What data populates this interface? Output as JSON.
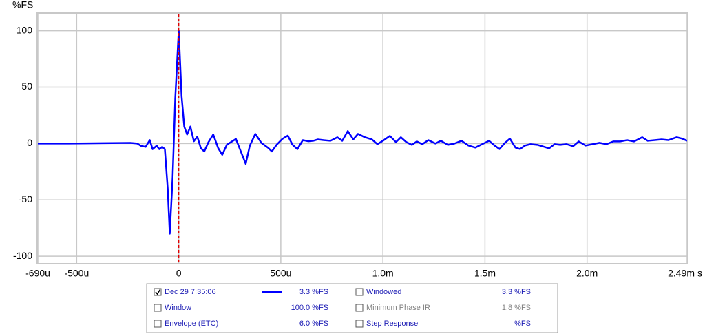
{
  "chart_data": {
    "type": "line",
    "y_label": "%FS",
    "x_unit": "s",
    "xlim": [
      -0.00069,
      0.00249
    ],
    "ylim": [
      -106,
      115
    ],
    "xticks": [
      {
        "value": -0.00069,
        "label": "-690u"
      },
      {
        "value": -0.0005,
        "label": "-500u"
      },
      0,
      {
        "value": 0.0005,
        "label": "500u"
      },
      {
        "value": 0.001,
        "label": "1.0m"
      },
      {
        "value": 0.0015,
        "label": "1.5m"
      },
      {
        "value": 0.002,
        "label": "2.0m"
      },
      {
        "value": 0.00249,
        "label": "2.49m"
      }
    ],
    "yticks": [
      100,
      50,
      0,
      -50,
      -100
    ],
    "grid": true,
    "marker_x": 0,
    "marker_color": "#e00000",
    "series": [
      {
        "name": "Dec 29 7:35:06",
        "reading": "3.3 %FS",
        "checked": true,
        "color": "#0000ff",
        "x": [
          -0.00069,
          -0.000541,
          -0.000372,
          -0.000236,
          -0.000203,
          -0.000186,
          -0.000162,
          -0.000142,
          -0.000128,
          -0.000108,
          -9.5e-05,
          -8.1e-05,
          -6.8e-05,
          -5.4e-05,
          -4.4e-05,
          -3e-05,
          -1.7e-05,
          0,
          1.4e-05,
          2.7e-05,
          4.1e-05,
          5.7e-05,
          7.4e-05,
          9.1e-05,
          0.000108,
          0.000125,
          0.000145,
          0.000169,
          0.000193,
          0.000213,
          0.000236,
          0.00028,
          0.000304,
          0.000328,
          0.000348,
          0.000375,
          0.000405,
          0.000439,
          0.000456,
          0.00048,
          0.000507,
          0.000534,
          0.000557,
          0.000581,
          0.000608,
          0.000635,
          0.000659,
          0.000682,
          0.000709,
          0.000743,
          0.000777,
          0.000801,
          0.000828,
          0.000855,
          0.000878,
          0.000912,
          0.000946,
          0.000973,
          0.001,
          0.001034,
          0.001064,
          0.001088,
          0.001115,
          0.001142,
          0.001166,
          0.001193,
          0.001223,
          0.001257,
          0.001284,
          0.001318,
          0.001351,
          0.001385,
          0.001419,
          0.001453,
          0.001486,
          0.00152,
          0.001547,
          0.001571,
          0.001598,
          0.001622,
          0.001649,
          0.001672,
          0.001696,
          0.001723,
          0.001757,
          0.001791,
          0.001814,
          0.001841,
          0.001868,
          0.001899,
          0.001932,
          0.001959,
          0.001993,
          0.002027,
          0.002061,
          0.002095,
          0.002128,
          0.002162,
          0.002196,
          0.00223,
          0.00227,
          0.002297,
          0.002331,
          0.002365,
          0.002399,
          0.002439,
          0.002466,
          0.00249
        ],
        "values": [
          0,
          0,
          0.3,
          0.5,
          0,
          -2,
          -3,
          3,
          -5,
          -2,
          -5,
          -3,
          -5,
          -40,
          -80,
          -30,
          40,
          100,
          42,
          15,
          8,
          15,
          2,
          6,
          -4,
          -7,
          1,
          8,
          -4,
          -10,
          -1,
          4,
          -7,
          -18,
          -2,
          8.5,
          0.5,
          -4,
          -7,
          -1,
          4,
          7,
          -1,
          -5,
          3,
          2,
          2.4,
          3.6,
          3,
          2.4,
          5.5,
          2.4,
          11,
          3.6,
          8.5,
          5.5,
          3.6,
          -0.6,
          2.4,
          6.7,
          1.2,
          5.5,
          1.2,
          -1.2,
          1.8,
          -0.6,
          3,
          0,
          2.4,
          -1.2,
          0,
          2.4,
          -1.8,
          -3.6,
          -0.6,
          2.4,
          -1.8,
          -4.9,
          0.6,
          4.3,
          -3.6,
          -4.9,
          -1.8,
          -0.6,
          -1.2,
          -3,
          -4.3,
          -0.6,
          -1.2,
          -0.6,
          -2.4,
          1.8,
          -1.8,
          -0.6,
          0.6,
          -0.6,
          1.8,
          1.8,
          3,
          1.8,
          5.5,
          2.4,
          3,
          3.6,
          3,
          5.5,
          4.3,
          2.4
        ]
      }
    ],
    "traces": [
      {
        "label": "Window",
        "reading": "100.0 %FS",
        "checked": false,
        "enabled": true
      },
      {
        "label": "Envelope (ETC)",
        "reading": "6.0 %FS",
        "checked": false,
        "enabled": true
      },
      {
        "label": "Windowed",
        "reading": "3.3 %FS",
        "checked": false,
        "enabled": true
      },
      {
        "label": "Minimum Phase IR",
        "reading": "1.8 %FS",
        "checked": false,
        "enabled": false
      },
      {
        "label": "Step Response",
        "reading": "%FS",
        "checked": false,
        "enabled": true
      }
    ]
  }
}
